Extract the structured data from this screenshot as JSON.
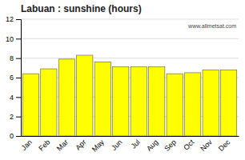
{
  "chart_data": {
    "type": "bar",
    "title": "Labuan : sunshine (hours)",
    "categories": [
      "Jan",
      "Feb",
      "Mar",
      "Apr",
      "May",
      "Jun",
      "Jul",
      "Aug",
      "Sep",
      "Oct",
      "Nov",
      "Dec"
    ],
    "values": [
      6.4,
      6.9,
      7.9,
      8.3,
      7.6,
      7.1,
      7.1,
      7.1,
      6.4,
      6.5,
      6.8,
      6.8
    ],
    "color": "#ffff00",
    "ylim": [
      0,
      12
    ],
    "yticks": [
      0,
      2,
      4,
      6,
      8,
      10,
      12
    ],
    "grid": true,
    "annotations": [
      "www.allmetsat.com"
    ]
  }
}
